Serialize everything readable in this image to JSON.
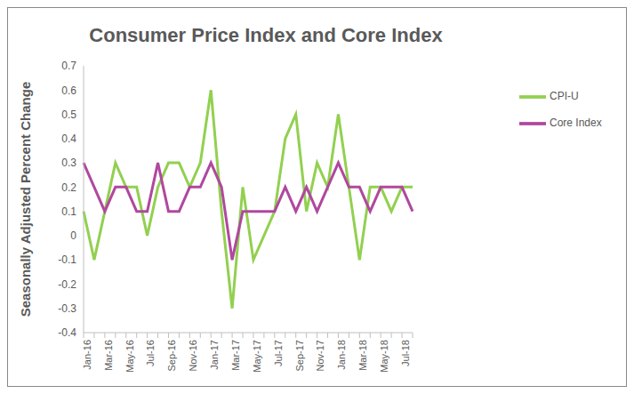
{
  "chart_data": {
    "type": "line",
    "title": "Consumer Price Index and Core Index",
    "y_label": "Seasonally Adjusted Percent Change",
    "categories": [
      "Jan-16",
      null,
      "Mar-16",
      null,
      "May-16",
      null,
      "Jul-16",
      null,
      "Sep-16",
      null,
      "Nov-16",
      null,
      "Jan-17",
      null,
      "Mar-17",
      null,
      "May-17",
      null,
      "Jul-17",
      null,
      "Sep-17",
      null,
      "Nov-17",
      null,
      "Jan-18",
      null,
      "Mar-18",
      null,
      "May-18",
      null,
      "Jul-18",
      null
    ],
    "series": [
      {
        "name": "CPI-U",
        "color": "#92d050",
        "values": [
          0.1,
          -0.1,
          0.1,
          0.3,
          0.2,
          0.2,
          0.0,
          0.2,
          0.3,
          0.3,
          0.2,
          0.3,
          0.6,
          0.1,
          -0.3,
          0.2,
          -0.1,
          0.0,
          0.1,
          0.4,
          0.5,
          0.1,
          0.3,
          0.2,
          0.5,
          0.2,
          -0.1,
          0.2,
          0.2,
          0.1,
          0.2,
          0.2
        ]
      },
      {
        "name": "Core Index",
        "color": "#b0489e",
        "values": [
          0.3,
          0.2,
          0.1,
          0.2,
          0.2,
          0.1,
          0.1,
          0.3,
          0.1,
          0.1,
          0.2,
          0.2,
          0.3,
          0.2,
          -0.1,
          0.1,
          0.1,
          0.1,
          0.1,
          0.2,
          0.1,
          0.2,
          0.1,
          0.2,
          0.3,
          0.2,
          0.2,
          0.1,
          0.2,
          0.2,
          0.2,
          0.1
        ]
      }
    ],
    "ylim": [
      -0.4,
      0.7
    ],
    "yticks": [
      -0.4,
      -0.3,
      -0.2,
      -0.1,
      0,
      0.1,
      0.2,
      0.3,
      0.4,
      0.5,
      0.6,
      0.7
    ],
    "grid": false,
    "legend": "right"
  }
}
